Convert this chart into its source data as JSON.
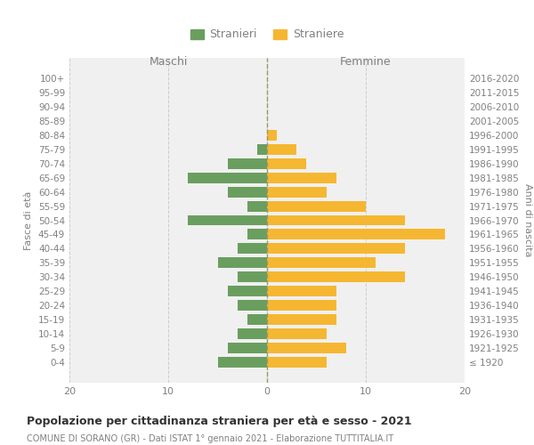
{
  "age_groups": [
    "100+",
    "95-99",
    "90-94",
    "85-89",
    "80-84",
    "75-79",
    "70-74",
    "65-69",
    "60-64",
    "55-59",
    "50-54",
    "45-49",
    "40-44",
    "35-39",
    "30-34",
    "25-29",
    "20-24",
    "15-19",
    "10-14",
    "5-9",
    "0-4"
  ],
  "birth_years": [
    "≤ 1920",
    "1921-1925",
    "1926-1930",
    "1931-1935",
    "1936-1940",
    "1941-1945",
    "1946-1950",
    "1951-1955",
    "1956-1960",
    "1961-1965",
    "1966-1970",
    "1971-1975",
    "1976-1980",
    "1981-1985",
    "1986-1990",
    "1991-1995",
    "1996-2000",
    "2001-2005",
    "2006-2010",
    "2011-2015",
    "2016-2020"
  ],
  "maschi": [
    0,
    0,
    0,
    0,
    0,
    1,
    4,
    8,
    4,
    2,
    8,
    2,
    3,
    5,
    3,
    4,
    3,
    2,
    3,
    4,
    5
  ],
  "femmine": [
    0,
    0,
    0,
    0,
    1,
    3,
    4,
    7,
    6,
    10,
    14,
    18,
    14,
    11,
    14,
    7,
    7,
    7,
    6,
    8,
    6
  ],
  "maschi_color": "#6a9e5f",
  "femmine_color": "#f5b731",
  "background_color": "#f0f0f0",
  "title": "Popolazione per cittadinanza straniera per età e sesso - 2021",
  "subtitle": "COMUNE DI SORANO (GR) - Dati ISTAT 1° gennaio 2021 - Elaborazione TUTTITALIA.IT",
  "xlabel_left": "Maschi",
  "xlabel_right": "Femmine",
  "ylabel_left": "Fasce di età",
  "ylabel_right": "Anni di nascita",
  "xlim": 20,
  "legend_maschi": "Stranieri",
  "legend_femmine": "Straniere",
  "bar_height": 0.75,
  "grid_color": "#cccccc",
  "text_color": "#808080",
  "dashed_line_color": "#999966"
}
